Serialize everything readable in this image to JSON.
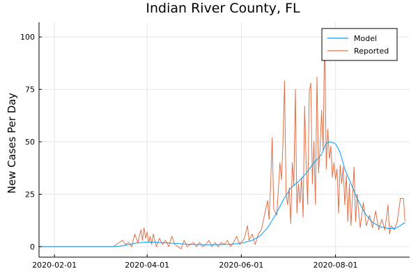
{
  "chart_data": {
    "type": "line",
    "title": "Indian River County, FL",
    "xlabel": "",
    "ylabel": "New Cases Per Day",
    "x_axis_type": "date",
    "xlim": [
      "2020-01-22",
      "2020-09-18"
    ],
    "ylim": [
      -5,
      107
    ],
    "x_ticks": [
      "2020-02-01",
      "2020-04-01",
      "2020-06-01",
      "2020-08-01"
    ],
    "y_ticks": [
      0,
      25,
      50,
      75,
      100
    ],
    "grid": true,
    "legend_position": "top-right",
    "series": [
      {
        "name": "Model",
        "color": "#009af9",
        "points": [
          [
            "2020-01-22",
            0
          ],
          [
            "2020-02-15",
            0
          ],
          [
            "2020-03-10",
            0
          ],
          [
            "2020-03-15",
            0.3
          ],
          [
            "2020-03-20",
            1.0
          ],
          [
            "2020-03-25",
            1.7
          ],
          [
            "2020-03-30",
            2.1
          ],
          [
            "2020-04-04",
            2.2
          ],
          [
            "2020-04-09",
            2.0
          ],
          [
            "2020-04-14",
            1.8
          ],
          [
            "2020-04-19",
            1.5
          ],
          [
            "2020-04-24",
            1.3
          ],
          [
            "2020-04-29",
            1.1
          ],
          [
            "2020-05-04",
            1.0
          ],
          [
            "2020-05-09",
            0.9
          ],
          [
            "2020-05-14",
            0.9
          ],
          [
            "2020-05-19",
            1.0
          ],
          [
            "2020-05-24",
            1.1
          ],
          [
            "2020-05-29",
            1.4
          ],
          [
            "2020-06-03",
            2.0
          ],
          [
            "2020-06-08",
            3.0
          ],
          [
            "2020-06-13",
            5.0
          ],
          [
            "2020-06-18",
            9.0
          ],
          [
            "2020-06-23",
            15.0
          ],
          [
            "2020-06-28",
            22.0
          ],
          [
            "2020-07-03",
            28.0
          ],
          [
            "2020-07-08",
            31.0
          ],
          [
            "2020-07-13",
            35.0
          ],
          [
            "2020-07-18",
            40.0
          ],
          [
            "2020-07-23",
            44.0
          ],
          [
            "2020-07-26",
            49.5
          ],
          [
            "2020-07-29",
            50.0
          ],
          [
            "2020-08-01",
            49.0
          ],
          [
            "2020-08-04",
            45.0
          ],
          [
            "2020-08-07",
            37.0
          ],
          [
            "2020-08-11",
            30.0
          ],
          [
            "2020-08-15",
            23.0
          ],
          [
            "2020-08-20",
            16.0
          ],
          [
            "2020-08-25",
            11.5
          ],
          [
            "2020-08-30",
            9.5
          ],
          [
            "2020-09-04",
            8.7
          ],
          [
            "2020-09-09",
            8.8
          ],
          [
            "2020-09-13",
            10.5
          ],
          [
            "2020-09-15",
            11.5
          ]
        ]
      },
      {
        "name": "Reported",
        "color": "#e26f46",
        "points": [
          [
            "2020-01-22",
            0
          ],
          [
            "2020-03-10",
            0
          ],
          [
            "2020-03-14",
            2
          ],
          [
            "2020-03-16",
            3
          ],
          [
            "2020-03-18",
            1
          ],
          [
            "2020-03-20",
            2
          ],
          [
            "2020-03-22",
            0
          ],
          [
            "2020-03-24",
            6
          ],
          [
            "2020-03-26",
            2
          ],
          [
            "2020-03-28",
            8
          ],
          [
            "2020-03-29",
            3
          ],
          [
            "2020-03-30",
            9
          ],
          [
            "2020-03-31",
            4
          ],
          [
            "2020-04-01",
            7
          ],
          [
            "2020-04-02",
            2
          ],
          [
            "2020-04-03",
            5
          ],
          [
            "2020-04-04",
            1
          ],
          [
            "2020-04-05",
            6
          ],
          [
            "2020-04-07",
            0
          ],
          [
            "2020-04-09",
            4
          ],
          [
            "2020-04-11",
            1
          ],
          [
            "2020-04-13",
            3
          ],
          [
            "2020-04-15",
            0
          ],
          [
            "2020-04-17",
            5
          ],
          [
            "2020-04-19",
            1
          ],
          [
            "2020-04-21",
            0
          ],
          [
            "2020-04-23",
            -1
          ],
          [
            "2020-04-25",
            3
          ],
          [
            "2020-04-27",
            0
          ],
          [
            "2020-04-29",
            1
          ],
          [
            "2020-05-01",
            2
          ],
          [
            "2020-05-03",
            0
          ],
          [
            "2020-05-05",
            2
          ],
          [
            "2020-05-07",
            0
          ],
          [
            "2020-05-09",
            1
          ],
          [
            "2020-05-11",
            3
          ],
          [
            "2020-05-13",
            0
          ],
          [
            "2020-05-15",
            2
          ],
          [
            "2020-05-17",
            0
          ],
          [
            "2020-05-19",
            2
          ],
          [
            "2020-05-21",
            1
          ],
          [
            "2020-05-23",
            3
          ],
          [
            "2020-05-25",
            0
          ],
          [
            "2020-05-27",
            2
          ],
          [
            "2020-05-29",
            5
          ],
          [
            "2020-05-31",
            1
          ],
          [
            "2020-06-01",
            2
          ],
          [
            "2020-06-03",
            4
          ],
          [
            "2020-06-05",
            10
          ],
          [
            "2020-06-06",
            3
          ],
          [
            "2020-06-08",
            6
          ],
          [
            "2020-06-10",
            1
          ],
          [
            "2020-06-12",
            6
          ],
          [
            "2020-06-14",
            8
          ],
          [
            "2020-06-16",
            15
          ],
          [
            "2020-06-18",
            22
          ],
          [
            "2020-06-19",
            13
          ],
          [
            "2020-06-20",
            30
          ],
          [
            "2020-06-21",
            52
          ],
          [
            "2020-06-22",
            18
          ],
          [
            "2020-06-24",
            15
          ],
          [
            "2020-06-26",
            40
          ],
          [
            "2020-06-27",
            32
          ],
          [
            "2020-06-28",
            50
          ],
          [
            "2020-06-29",
            79
          ],
          [
            "2020-06-30",
            25
          ],
          [
            "2020-07-01",
            20
          ],
          [
            "2020-07-02",
            28
          ],
          [
            "2020-07-03",
            11
          ],
          [
            "2020-07-04",
            40
          ],
          [
            "2020-07-05",
            29
          ],
          [
            "2020-07-06",
            75
          ],
          [
            "2020-07-07",
            16
          ],
          [
            "2020-07-08",
            30
          ],
          [
            "2020-07-09",
            21
          ],
          [
            "2020-07-10",
            33
          ],
          [
            "2020-07-11",
            14
          ],
          [
            "2020-07-12",
            67
          ],
          [
            "2020-07-13",
            40
          ],
          [
            "2020-07-14",
            20
          ],
          [
            "2020-07-15",
            74
          ],
          [
            "2020-07-16",
            78
          ],
          [
            "2020-07-17",
            30
          ],
          [
            "2020-07-18",
            50
          ],
          [
            "2020-07-19",
            20
          ],
          [
            "2020-07-20",
            81
          ],
          [
            "2020-07-21",
            35
          ],
          [
            "2020-07-22",
            47
          ],
          [
            "2020-07-23",
            65
          ],
          [
            "2020-07-24",
            46
          ],
          [
            "2020-07-25",
            104
          ],
          [
            "2020-07-26",
            37
          ],
          [
            "2020-07-27",
            56
          ],
          [
            "2020-07-28",
            42
          ],
          [
            "2020-07-29",
            48
          ],
          [
            "2020-07-30",
            33
          ],
          [
            "2020-07-31",
            40
          ],
          [
            "2020-08-01",
            32
          ],
          [
            "2020-08-02",
            37
          ],
          [
            "2020-08-03",
            16
          ],
          [
            "2020-08-04",
            39
          ],
          [
            "2020-08-05",
            30
          ],
          [
            "2020-08-06",
            38
          ],
          [
            "2020-08-07",
            20
          ],
          [
            "2020-08-08",
            34
          ],
          [
            "2020-08-09",
            12
          ],
          [
            "2020-08-10",
            30
          ],
          [
            "2020-08-11",
            10
          ],
          [
            "2020-08-13",
            38
          ],
          [
            "2020-08-14",
            12
          ],
          [
            "2020-08-15",
            25
          ],
          [
            "2020-08-17",
            9
          ],
          [
            "2020-08-19",
            21
          ],
          [
            "2020-08-21",
            10
          ],
          [
            "2020-08-23",
            15
          ],
          [
            "2020-08-25",
            9
          ],
          [
            "2020-08-27",
            17
          ],
          [
            "2020-08-29",
            8
          ],
          [
            "2020-08-31",
            13
          ],
          [
            "2020-09-02",
            8
          ],
          [
            "2020-09-04",
            20
          ],
          [
            "2020-09-05",
            6
          ],
          [
            "2020-09-06",
            10
          ],
          [
            "2020-09-08",
            8
          ],
          [
            "2020-09-10",
            12
          ],
          [
            "2020-09-12",
            23
          ],
          [
            "2020-09-14",
            23
          ],
          [
            "2020-09-15",
            12
          ]
        ]
      }
    ]
  }
}
